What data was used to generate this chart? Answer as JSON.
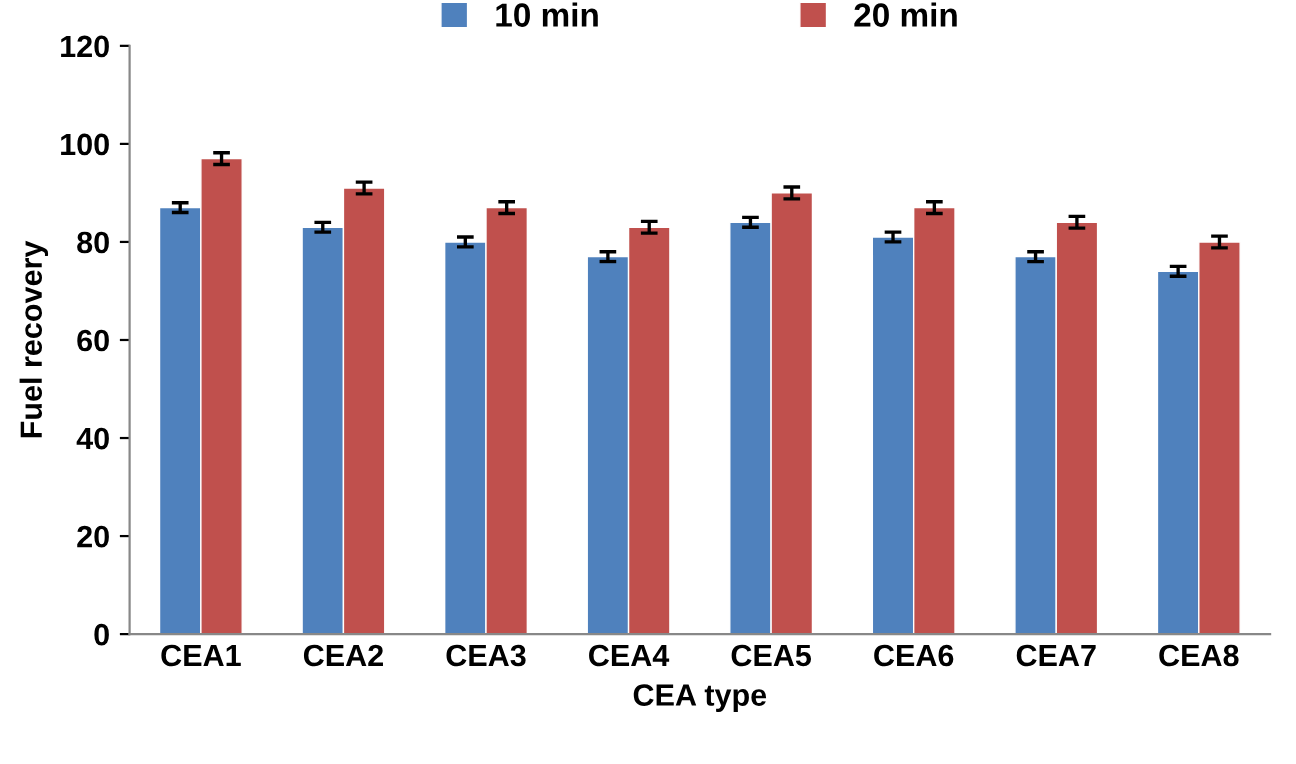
{
  "chart_data": {
    "type": "bar",
    "xlabel": "CEA type",
    "ylabel": "Fuel recovery",
    "categories": [
      "CEA1",
      "CEA2",
      "CEA3",
      "CEA4",
      "CEA5",
      "CEA6",
      "CEA7",
      "CEA8"
    ],
    "series": [
      {
        "name": "10 min",
        "color": "#4f81bd",
        "values": [
          87,
          83,
          80,
          77,
          84,
          81,
          77,
          74
        ],
        "errors": [
          1,
          1,
          1,
          1,
          1,
          1,
          1,
          1
        ]
      },
      {
        "name": "20 min",
        "color": "#c0504d",
        "values": [
          97,
          91,
          87,
          83,
          90,
          87,
          84,
          80
        ],
        "errors": [
          1.2,
          1.2,
          1.2,
          1.2,
          1.2,
          1.2,
          1.2,
          1.2
        ]
      }
    ],
    "ylim": [
      0,
      120
    ],
    "yticks": [
      0,
      20,
      40,
      60,
      80,
      100,
      120
    ],
    "grid": false,
    "legend": "top"
  }
}
